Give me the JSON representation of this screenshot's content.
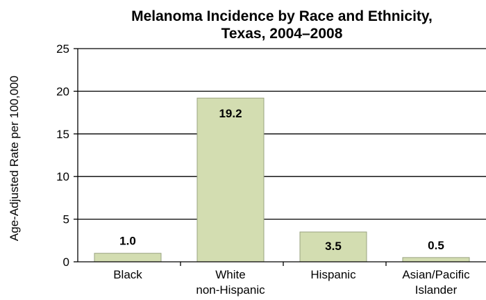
{
  "chart_data": {
    "type": "bar",
    "title_lines": [
      "Melanoma Incidence by Race and Ethnicity,",
      "Texas, 2004–2008"
    ],
    "ylabel": "Age-Adjusted Rate per 100,000",
    "xlabel": "",
    "ylim": [
      0,
      25
    ],
    "yticks": [
      0,
      5,
      10,
      15,
      20,
      25
    ],
    "grid": true,
    "categories": [
      [
        "Black"
      ],
      [
        "White",
        "non-Hispanic"
      ],
      [
        "Hispanic"
      ],
      [
        "Asian/Pacific",
        "Islander"
      ]
    ],
    "values": [
      1.0,
      19.2,
      3.5,
      0.5
    ],
    "data_labels": [
      "1.0",
      "19.2",
      "3.5",
      "0.5"
    ],
    "bar_color": "#d3ddb1",
    "bar_stroke": "#9aa380"
  }
}
